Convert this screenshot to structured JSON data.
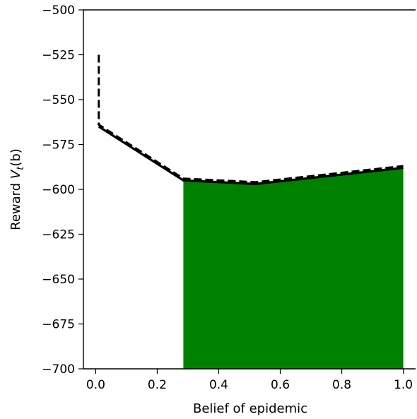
{
  "chart_data": {
    "type": "line",
    "title": "",
    "xlabel": "Belief of epidemic",
    "ylabel_main": "Reward ",
    "ylabel_var": "V",
    "ylabel_sub": "t",
    "ylabel_arg": "(b)",
    "xlim": [
      -0.04,
      1.04
    ],
    "ylim": [
      -700,
      -500
    ],
    "xticks": [
      0.0,
      0.2,
      0.4,
      0.6,
      0.8,
      1.0
    ],
    "xtick_labels": [
      "0.0",
      "0.2",
      "0.4",
      "0.6",
      "0.8",
      "1.0"
    ],
    "yticks": [
      -700,
      -675,
      -650,
      -625,
      -600,
      -575,
      -550,
      -525,
      -500
    ],
    "ytick_labels": [
      "−700",
      "−675",
      "−650",
      "−625",
      "−600",
      "−575",
      "−550",
      "−525",
      "−500"
    ],
    "grid": false,
    "series": [
      {
        "style": "solid",
        "color": "#000000",
        "x": [
          0.01,
          0.285,
          0.52,
          1.0
        ],
        "y": [
          -565,
          -595,
          -597,
          -588
        ]
      },
      {
        "style": "dashed",
        "color": "#000000",
        "x": [
          0.01,
          0.01,
          0.285,
          0.52,
          1.0
        ],
        "y": [
          -525,
          -564,
          -594,
          -596,
          -587
        ]
      }
    ],
    "fill_region": {
      "color": "#008000",
      "x": [
        0.285,
        0.52,
        1.0
      ],
      "y_top": [
        -595,
        -597,
        -588
      ],
      "y_bottom": -700
    }
  }
}
